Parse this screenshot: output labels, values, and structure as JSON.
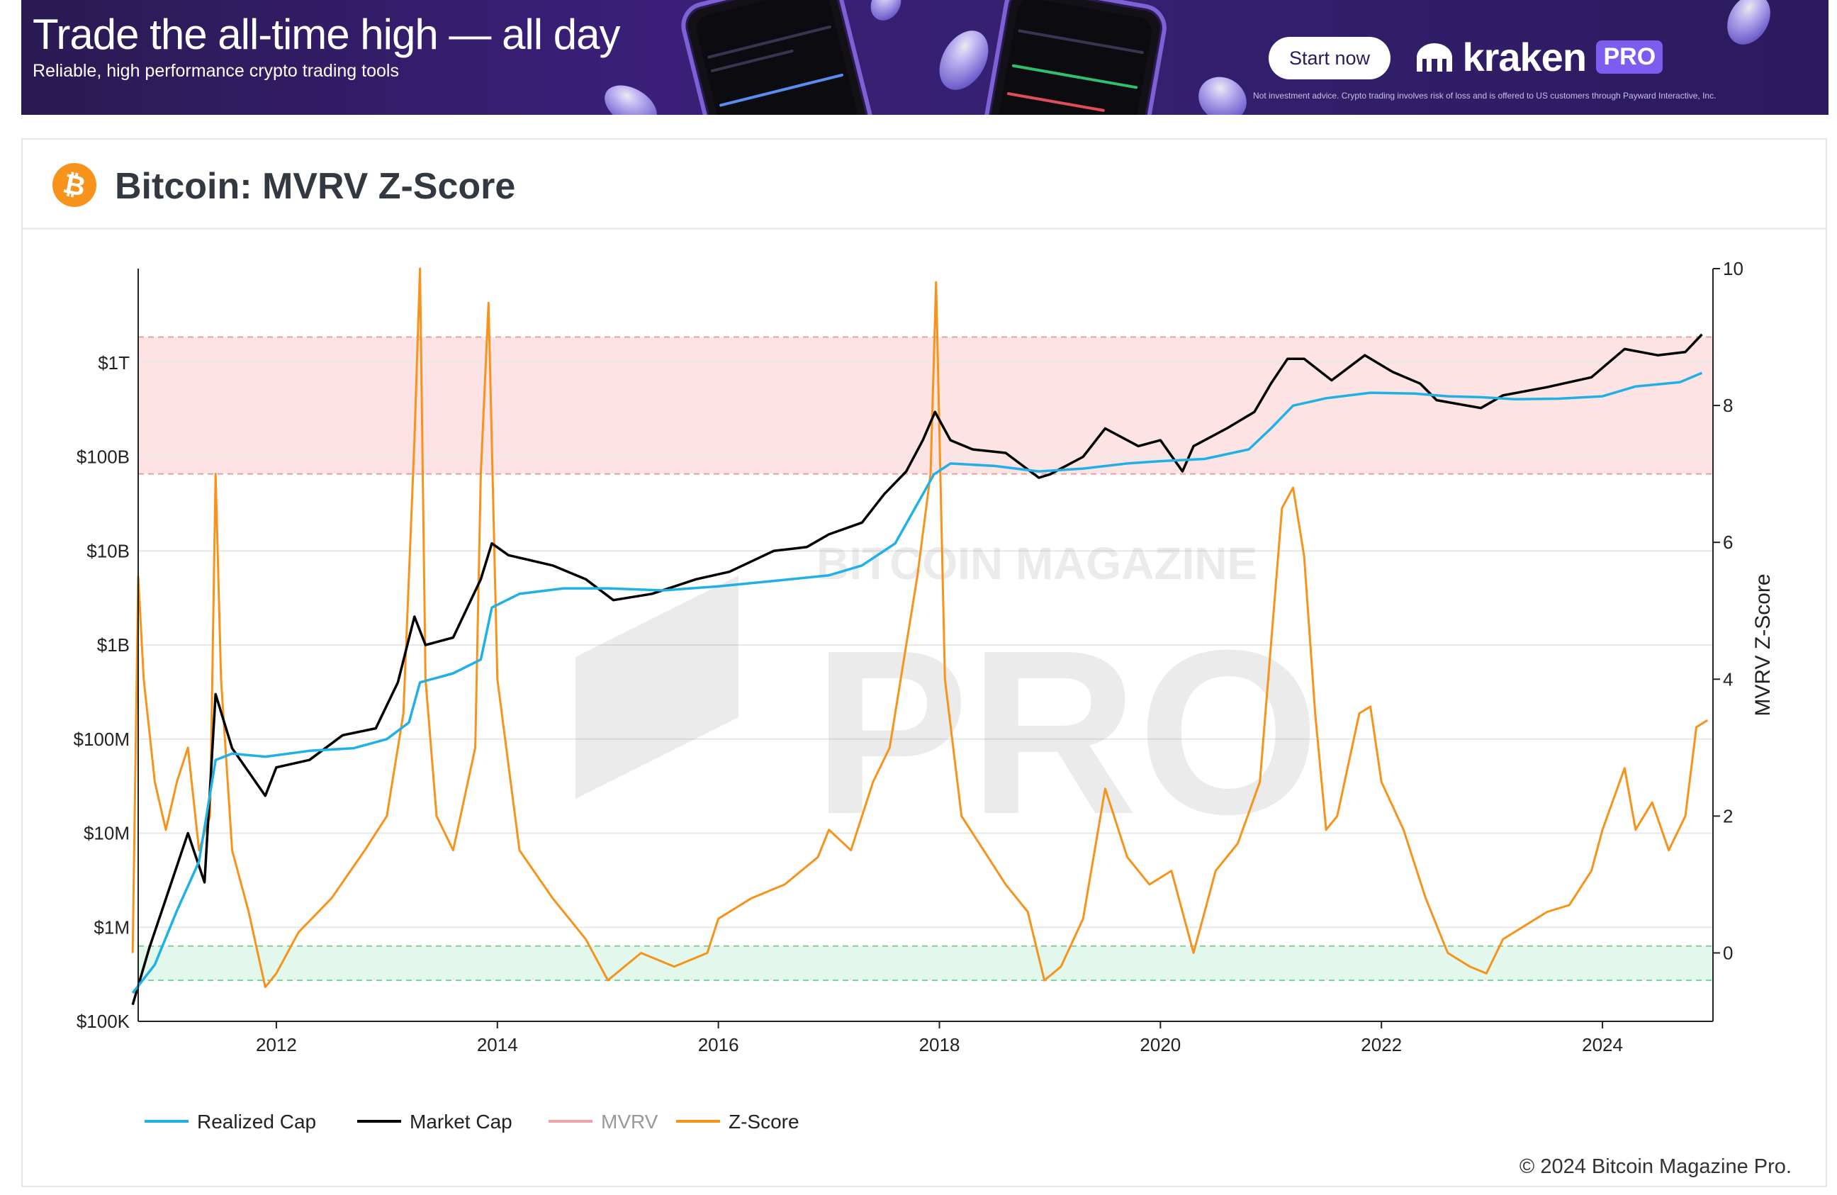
{
  "ad": {
    "headline": "Trade the all-time high — all day",
    "subline": "Reliable, high performance crypto trading tools",
    "cta_label": "Start now",
    "brand": "kraken",
    "brand_badge": "PRO",
    "disclaimer": "Not investment advice. Crypto trading involves risk of loss and is offered to US customers through Payward Interactive, Inc.",
    "colors": {
      "background": "#2f1d66",
      "accent": "#7d5cf0"
    }
  },
  "header": {
    "title": "Bitcoin: MVRV Z-Score",
    "icon": "bitcoin-icon",
    "icon_color": "#f7931a"
  },
  "footer": {
    "copyright": "© 2024 Bitcoin Magazine Pro."
  },
  "watermark": {
    "line1": "BITCOIN MAGAZINE",
    "line2": "PRO"
  },
  "chart_data": {
    "type": "line",
    "y_left_ticks": [
      "$100K",
      "$1M",
      "$10M",
      "$100M",
      "$1B",
      "$10B",
      "$100B",
      "$1T"
    ],
    "y_left_log_range_usd": [
      100000,
      10000000000000
    ],
    "y_right_label": "MVRV Z-Score",
    "y_right_range": [
      -1,
      10
    ],
    "y_right_ticks": [
      0,
      2,
      4,
      6,
      8,
      10
    ],
    "x_range": [
      2010.75,
      2025.0
    ],
    "x_ticks": [
      2012,
      2014,
      2016,
      2018,
      2020,
      2022,
      2024
    ],
    "grid": true,
    "legend_position": "bottom-left",
    "bands": [
      {
        "name": "overvalued",
        "axis": "right",
        "from": 7.0,
        "to": 9.0,
        "color": "#fde3e3"
      },
      {
        "name": "undervalued",
        "axis": "right",
        "from": -0.4,
        "to": 0.1,
        "color": "#e3f8ec"
      }
    ],
    "series": [
      {
        "name": "Realized Cap",
        "color": "#1fb1e6",
        "axis": "left",
        "x": [
          2010.7,
          2010.9,
          2011.1,
          2011.3,
          2011.45,
          2011.6,
          2011.9,
          2012.3,
          2012.7,
          2013.0,
          2013.2,
          2013.3,
          2013.6,
          2013.85,
          2013.95,
          2014.2,
          2014.6,
          2015.0,
          2015.5,
          2016.0,
          2016.5,
          2017.0,
          2017.3,
          2017.6,
          2017.85,
          2017.95,
          2018.1,
          2018.5,
          2018.9,
          2019.3,
          2019.7,
          2020.0,
          2020.4,
          2020.8,
          2021.0,
          2021.2,
          2021.5,
          2021.9,
          2022.3,
          2022.6,
          2022.9,
          2023.2,
          2023.6,
          2024.0,
          2024.3,
          2024.7,
          2024.9
        ],
        "values": [
          200000,
          400000,
          1500000,
          5000000,
          60000000,
          70000000,
          65000000,
          75000000,
          80000000,
          100000000,
          150000000,
          400000000,
          500000000,
          700000000,
          2500000000,
          3500000000,
          4000000000,
          4000000000,
          3800000000,
          4200000000,
          4800000000,
          5500000000,
          7000000000,
          12000000000,
          40000000000,
          65000000000,
          85000000000,
          80000000000,
          70000000000,
          75000000000,
          85000000000,
          90000000000,
          95000000000,
          120000000000,
          200000000000,
          350000000000,
          420000000000,
          480000000000,
          470000000000,
          440000000000,
          430000000000,
          410000000000,
          415000000000,
          440000000000,
          560000000000,
          620000000000,
          780000000000
        ]
      },
      {
        "name": "Market Cap",
        "color": "#000000",
        "axis": "left",
        "x": [
          2010.7,
          2010.85,
          2011.0,
          2011.2,
          2011.35,
          2011.45,
          2011.6,
          2011.9,
          2012.0,
          2012.3,
          2012.6,
          2012.9,
          2013.1,
          2013.25,
          2013.35,
          2013.6,
          2013.85,
          2013.95,
          2014.1,
          2014.5,
          2014.8,
          2015.05,
          2015.4,
          2015.8,
          2016.1,
          2016.5,
          2016.8,
          2017.0,
          2017.3,
          2017.5,
          2017.7,
          2017.85,
          2017.96,
          2018.1,
          2018.3,
          2018.6,
          2018.9,
          2019.0,
          2019.3,
          2019.5,
          2019.8,
          2020.0,
          2020.2,
          2020.3,
          2020.6,
          2020.85,
          2021.0,
          2021.15,
          2021.3,
          2021.55,
          2021.85,
          2022.1,
          2022.35,
          2022.5,
          2022.9,
          2023.1,
          2023.5,
          2023.9,
          2024.2,
          2024.5,
          2024.75,
          2024.9
        ],
        "values": [
          150000,
          600000,
          2000000,
          10000000,
          3000000,
          300000000,
          80000000,
          25000000,
          50000000,
          60000000,
          110000000,
          130000000,
          400000000,
          2000000000,
          1000000000,
          1200000000,
          5000000000,
          12000000000,
          9000000000,
          7000000000,
          5000000000,
          3000000000,
          3500000000,
          5000000000,
          6000000000,
          10000000000,
          11000000000,
          15000000000,
          20000000000,
          40000000000,
          70000000000,
          150000000000,
          300000000000,
          150000000000,
          120000000000,
          110000000000,
          60000000000,
          65000000000,
          100000000000,
          200000000000,
          130000000000,
          150000000000,
          70000000000,
          130000000000,
          200000000000,
          300000000000,
          600000000000,
          1100000000000,
          1100000000000,
          650000000000,
          1200000000000,
          800000000000,
          600000000000,
          400000000000,
          330000000000,
          450000000000,
          550000000000,
          700000000000,
          1400000000000,
          1200000000000,
          1300000000000,
          2000000000000
        ]
      },
      {
        "name": "MVRV",
        "color": "#f0a0a8",
        "axis": "right",
        "visible": false,
        "x": [],
        "values": []
      },
      {
        "name": "Z-Score",
        "color": "#f7931a",
        "axis": "right",
        "x": [
          2010.7,
          2010.75,
          2010.8,
          2010.9,
          2011.0,
          2011.1,
          2011.2,
          2011.3,
          2011.4,
          2011.45,
          2011.5,
          2011.6,
          2011.75,
          2011.9,
          2012.0,
          2012.2,
          2012.5,
          2012.8,
          2013.0,
          2013.15,
          2013.25,
          2013.3,
          2013.35,
          2013.45,
          2013.6,
          2013.8,
          2013.85,
          2013.92,
          2014.0,
          2014.2,
          2014.5,
          2014.8,
          2015.0,
          2015.3,
          2015.6,
          2015.9,
          2016.0,
          2016.3,
          2016.6,
          2016.9,
          2017.0,
          2017.2,
          2017.4,
          2017.55,
          2017.65,
          2017.8,
          2017.92,
          2017.97,
          2018.05,
          2018.2,
          2018.4,
          2018.6,
          2018.8,
          2018.95,
          2019.1,
          2019.3,
          2019.5,
          2019.7,
          2019.9,
          2020.1,
          2020.2,
          2020.3,
          2020.5,
          2020.7,
          2020.9,
          2021.0,
          2021.1,
          2021.2,
          2021.3,
          2021.4,
          2021.5,
          2021.6,
          2021.8,
          2021.9,
          2022.0,
          2022.2,
          2022.4,
          2022.6,
          2022.8,
          2022.95,
          2023.1,
          2023.3,
          2023.5,
          2023.7,
          2023.9,
          2024.0,
          2024.2,
          2024.3,
          2024.45,
          2024.6,
          2024.75,
          2024.85,
          2024.95
        ],
        "values": [
          0.0,
          5.5,
          4.0,
          2.5,
          1.8,
          2.5,
          3.0,
          1.5,
          2.0,
          7.0,
          4.0,
          1.5,
          0.6,
          -0.5,
          -0.3,
          0.3,
          0.8,
          1.5,
          2.0,
          3.5,
          7.5,
          10.0,
          4.0,
          2.0,
          1.5,
          3.0,
          7.0,
          9.5,
          4.0,
          1.5,
          0.8,
          0.2,
          -0.4,
          0.0,
          -0.2,
          0.0,
          0.5,
          0.8,
          1.0,
          1.4,
          1.8,
          1.5,
          2.5,
          3.0,
          4.0,
          5.5,
          7.0,
          9.8,
          4.0,
          2.0,
          1.5,
          1.0,
          0.6,
          -0.4,
          -0.2,
          0.5,
          2.4,
          1.4,
          1.0,
          1.2,
          0.6,
          0.0,
          1.2,
          1.6,
          2.5,
          4.5,
          6.5,
          6.8,
          5.8,
          3.5,
          1.8,
          2.0,
          3.5,
          3.6,
          2.5,
          1.8,
          0.8,
          0.0,
          -0.2,
          -0.3,
          0.2,
          0.4,
          0.6,
          0.7,
          1.2,
          1.8,
          2.7,
          1.8,
          2.2,
          1.5,
          2.0,
          3.3,
          3.4
        ]
      }
    ]
  }
}
